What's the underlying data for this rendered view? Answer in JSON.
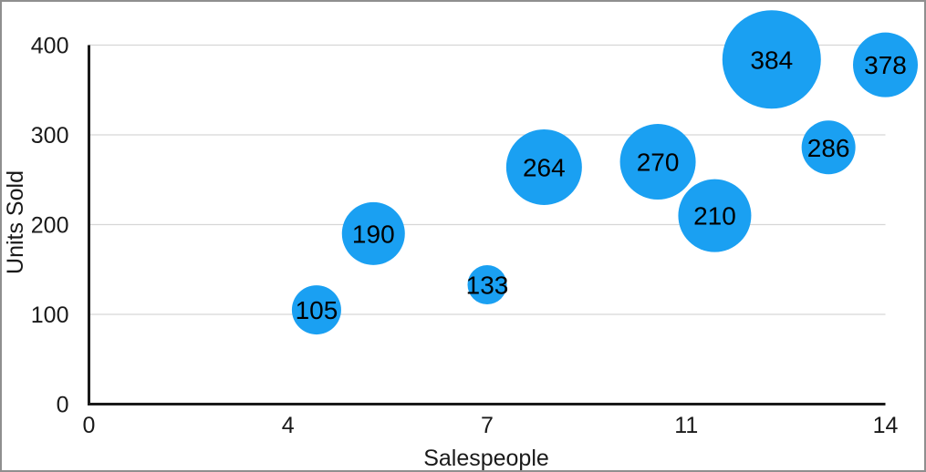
{
  "figure": {
    "background": "#FFFFFF",
    "frame_border_color": "#8F8F8F"
  },
  "chart_data": {
    "type": "scatter",
    "variant": "bubble",
    "title": "",
    "xlabel": "Salespeople",
    "ylabel": "Units Sold",
    "xlim": [
      0,
      14
    ],
    "ylim": [
      0,
      400
    ],
    "grid": "horizontal-only",
    "legend": "none",
    "x_ticks": [
      {
        "value": 0,
        "label": "0"
      },
      {
        "value": 3.5,
        "label": "4"
      },
      {
        "value": 7,
        "label": "7"
      },
      {
        "value": 10.5,
        "label": "11"
      },
      {
        "value": 14,
        "label": "14"
      }
    ],
    "y_ticks": [
      {
        "value": 0,
        "label": "0"
      },
      {
        "value": 100,
        "label": "100"
      },
      {
        "value": 200,
        "label": "200"
      },
      {
        "value": 300,
        "label": "300"
      },
      {
        "value": 400,
        "label": "400"
      }
    ],
    "points": [
      {
        "x": 4,
        "y": 105,
        "label": "105",
        "radius_px": 27
      },
      {
        "x": 5,
        "y": 190,
        "label": "190",
        "radius_px": 34.5
      },
      {
        "x": 7,
        "y": 133,
        "label": "133",
        "radius_px": 21.5
      },
      {
        "x": 8,
        "y": 264,
        "label": "264",
        "radius_px": 41.5
      },
      {
        "x": 10,
        "y": 270,
        "label": "270",
        "radius_px": 41.5
      },
      {
        "x": 11,
        "y": 210,
        "label": "210",
        "radius_px": 40
      },
      {
        "x": 12,
        "y": 384,
        "label": "384",
        "radius_px": 54
      },
      {
        "x": 13,
        "y": 286,
        "label": "286",
        "radius_px": 29.5
      },
      {
        "x": 14,
        "y": 378,
        "label": "378",
        "radius_px": 35.5
      }
    ],
    "colors": {
      "bubble": "#1AA0F2",
      "bubble_label": "#000000",
      "axis_line": "#1A1A1A",
      "gridline": "#D6D6D6",
      "text": "#1A1A1A"
    }
  }
}
